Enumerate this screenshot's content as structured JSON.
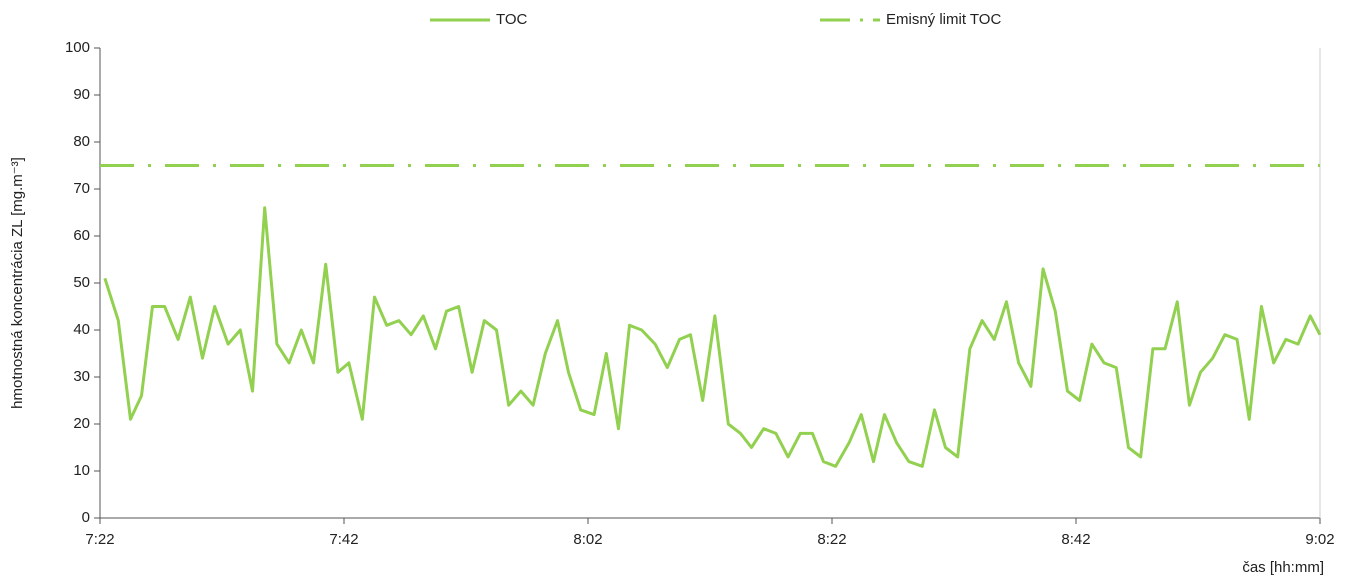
{
  "chart_data": {
    "type": "line",
    "x_label": "čas [hh:mm]",
    "y_label": "hmotnostná koncentrácia ZL [mg.m⁻³]",
    "xlim": [
      442,
      542
    ],
    "xticks": [
      {
        "value": 442,
        "label": "7:22"
      },
      {
        "value": 462,
        "label": "7:42"
      },
      {
        "value": 482,
        "label": "8:02"
      },
      {
        "value": 502,
        "label": "8:22"
      },
      {
        "value": 522,
        "label": "8:42"
      },
      {
        "value": 542,
        "label": "9:02"
      }
    ],
    "ylim": [
      0,
      100
    ],
    "yticks": [
      0,
      10,
      20,
      30,
      40,
      50,
      60,
      70,
      80,
      90,
      100
    ],
    "grid": false,
    "legend": "top",
    "series": [
      {
        "name": "TOC",
        "color": "#92d050",
        "style": "solid",
        "x": [
          442.4,
          443.5,
          444.5,
          445.4,
          446.3,
          447.3,
          448.4,
          449.4,
          450.4,
          451.4,
          452.5,
          453.5,
          454.5,
          455.5,
          456.5,
          457.5,
          458.5,
          459.5,
          460.5,
          461.5,
          462.4,
          463.5,
          464.5,
          465.5,
          466.5,
          467.5,
          468.5,
          469.5,
          470.4,
          471.4,
          472.5,
          473.5,
          474.5,
          475.5,
          476.5,
          477.5,
          478.5,
          479.5,
          480.4,
          481.4,
          482.5,
          483.5,
          484.5,
          485.4,
          486.4,
          487.5,
          488.5,
          489.5,
          490.4,
          491.4,
          492.4,
          493.5,
          494.5,
          495.4,
          496.4,
          497.4,
          498.4,
          499.4,
          500.4,
          501.3,
          502.3,
          503.4,
          504.4,
          505.4,
          506.3,
          507.3,
          508.3,
          509.4,
          510.4,
          511.3,
          512.3,
          513.3,
          514.3,
          515.3,
          516.3,
          517.3,
          518.3,
          519.3,
          520.3,
          521.3,
          522.3,
          523.3,
          524.3,
          525.3,
          526.3,
          527.3,
          528.3,
          529.3,
          530.3,
          531.3,
          532.2,
          533.2,
          534.2,
          535.2,
          536.2,
          537.2,
          538.2,
          539.2,
          540.2,
          541.2,
          542
        ],
        "values": [
          51,
          42,
          21,
          26,
          45,
          45,
          38,
          47,
          34,
          45,
          37,
          40,
          27,
          66,
          37,
          33,
          40,
          33,
          54,
          31,
          33,
          21,
          47,
          41,
          42,
          39,
          43,
          36,
          44,
          45,
          31,
          42,
          40,
          24,
          27,
          24,
          35,
          42,
          31,
          23,
          22,
          35,
          19,
          41,
          40,
          37,
          32,
          38,
          39,
          25,
          43,
          20,
          18,
          15,
          19,
          18,
          13,
          18,
          18,
          12,
          11,
          16,
          22,
          12,
          22,
          16,
          12,
          11,
          23,
          15,
          13,
          36,
          42,
          38,
          46,
          33,
          28,
          53,
          44,
          27,
          25,
          37,
          33,
          32,
          15,
          13,
          36,
          36,
          46,
          24,
          31,
          34,
          39,
          38,
          21,
          45,
          33,
          38,
          37,
          43,
          39
        ]
      },
      {
        "name": "Emisný limit TOC",
        "color": "#92d050",
        "style": "dashdot",
        "x": [
          442,
          542
        ],
        "values": [
          75,
          75
        ]
      }
    ]
  }
}
